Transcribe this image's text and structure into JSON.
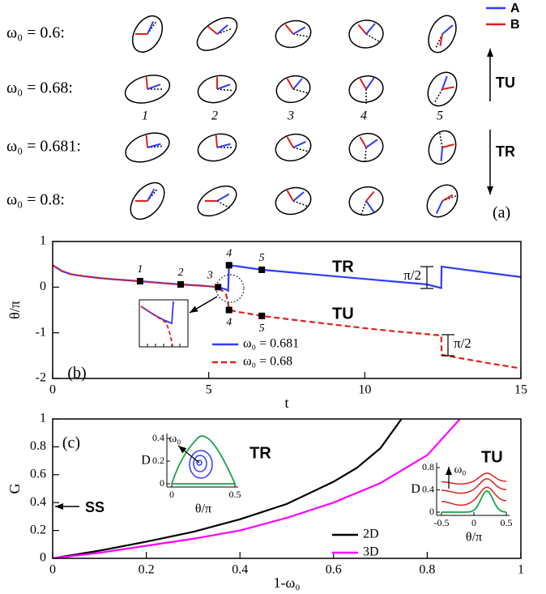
{
  "diagram": {
    "row_labels": [
      "ω₀ = 0.6:",
      "ω₀ = 0.68:",
      "ω₀ = 0.681:",
      "ω₀ = 0.8:"
    ],
    "column_labels": [
      "1",
      "2",
      "3",
      "4",
      "5"
    ],
    "legend": [
      {
        "name": "A",
        "color": "#2f3cff"
      },
      {
        "name": "B",
        "color": "#e0201b"
      }
    ],
    "arrow_labels": [
      "TU",
      "TR"
    ],
    "panel_label": "(a)"
  },
  "chart_data": [
    {
      "type": "line",
      "panel_label": "(b)",
      "xlabel": "t",
      "ylabel": "θ/π",
      "xlim": [
        0,
        15
      ],
      "ylim": [
        -2,
        1
      ],
      "xticks": [
        0,
        5,
        10,
        15
      ],
      "yticks": [
        -2,
        -1,
        0,
        1
      ],
      "series": [
        {
          "name": "ω₀ = 0.681",
          "color": "#2f3cff",
          "dash": false,
          "x": [
            0,
            0.3,
            0.6,
            1,
            1.5,
            2,
            2.8,
            3.5,
            4.1,
            4.8,
            5.3,
            5.55,
            5.62,
            5.65,
            6,
            6.7,
            8,
            9,
            10,
            11,
            12,
            12.45,
            12.46,
            13,
            14,
            15
          ],
          "values": [
            0.48,
            0.35,
            0.28,
            0.24,
            0.2,
            0.17,
            0.13,
            0.09,
            0.06,
            0.03,
            0.0,
            -0.05,
            -0.08,
            0.48,
            0.45,
            0.38,
            0.3,
            0.24,
            0.18,
            0.12,
            0.06,
            -0.02,
            0.45,
            0.4,
            0.31,
            0.22
          ]
        },
        {
          "name": "ω₀ = 0.68",
          "color": "#e0201b",
          "dash": true,
          "x": [
            0,
            0.3,
            0.6,
            1,
            1.5,
            2,
            2.8,
            3.5,
            4.1,
            4.8,
            5.3,
            5.55,
            5.62,
            5.65,
            6,
            6.7,
            8,
            9,
            10,
            11,
            12,
            12.45,
            12.46,
            13,
            14,
            15
          ],
          "values": [
            0.48,
            0.35,
            0.28,
            0.24,
            0.2,
            0.17,
            0.13,
            0.09,
            0.06,
            0.03,
            0.0,
            -0.15,
            -0.35,
            -0.5,
            -0.55,
            -0.63,
            -0.74,
            -0.82,
            -0.9,
            -0.97,
            -1.03,
            -1.06,
            -1.48,
            -1.55,
            -1.67,
            -1.78
          ]
        }
      ],
      "points": {
        "labels": [
          "1",
          "2",
          "3",
          "4",
          "5",
          "4",
          "5"
        ],
        "x": [
          2.8,
          4.1,
          5.3,
          5.65,
          6.7,
          5.65,
          6.7
        ],
        "values": [
          0.13,
          0.06,
          0.0,
          0.48,
          0.38,
          -0.5,
          -0.63
        ]
      },
      "annotations": [
        "TR",
        "TU",
        "π/2",
        "π/2"
      ]
    },
    {
      "type": "line",
      "panel_label": "(c)",
      "xlabel": "1-ω₀",
      "ylabel": "G",
      "xlim": [
        0,
        1
      ],
      "ylim": [
        0,
        1
      ],
      "xticks": [
        0,
        0.2,
        0.4,
        0.6,
        0.8,
        1
      ],
      "yticks": [
        0,
        0.2,
        0.4,
        0.6,
        0.8,
        1
      ],
      "series": [
        {
          "name": "2D",
          "color": "#000000",
          "dash": false,
          "x": [
            0,
            0.1,
            0.2,
            0.3,
            0.4,
            0.5,
            0.6,
            0.65,
            0.7,
            0.745
          ],
          "values": [
            0,
            0.055,
            0.12,
            0.19,
            0.28,
            0.39,
            0.55,
            0.65,
            0.79,
            1.0
          ]
        },
        {
          "name": "3D",
          "color": "#ff00ff",
          "dash": false,
          "x": [
            0,
            0.1,
            0.2,
            0.3,
            0.4,
            0.5,
            0.6,
            0.7,
            0.8,
            0.87
          ],
          "values": [
            0,
            0.04,
            0.09,
            0.14,
            0.2,
            0.29,
            0.4,
            0.54,
            0.74,
            1.0
          ]
        }
      ],
      "annotations": [
        "SS",
        "TR",
        "TU"
      ],
      "insets": [
        {
          "xlabel": "θ/π",
          "ylabel": "D",
          "arrow_label": "ω₀",
          "xlim": [
            0,
            0.5
          ],
          "ylim": [
            0,
            0.4
          ],
          "xticks": [
            0,
            0.5
          ],
          "yticks": [
            0,
            0.2,
            0.4
          ]
        },
        {
          "xlabel": "θ/π",
          "ylabel": "D",
          "arrow_label": "ω₀",
          "xlim": [
            -0.5,
            0.5
          ],
          "ylim": [
            0,
            0.8
          ],
          "xticks": [
            -0.5,
            0,
            0.5
          ],
          "yticks": [
            0,
            0.4,
            0.8
          ]
        }
      ]
    }
  ]
}
